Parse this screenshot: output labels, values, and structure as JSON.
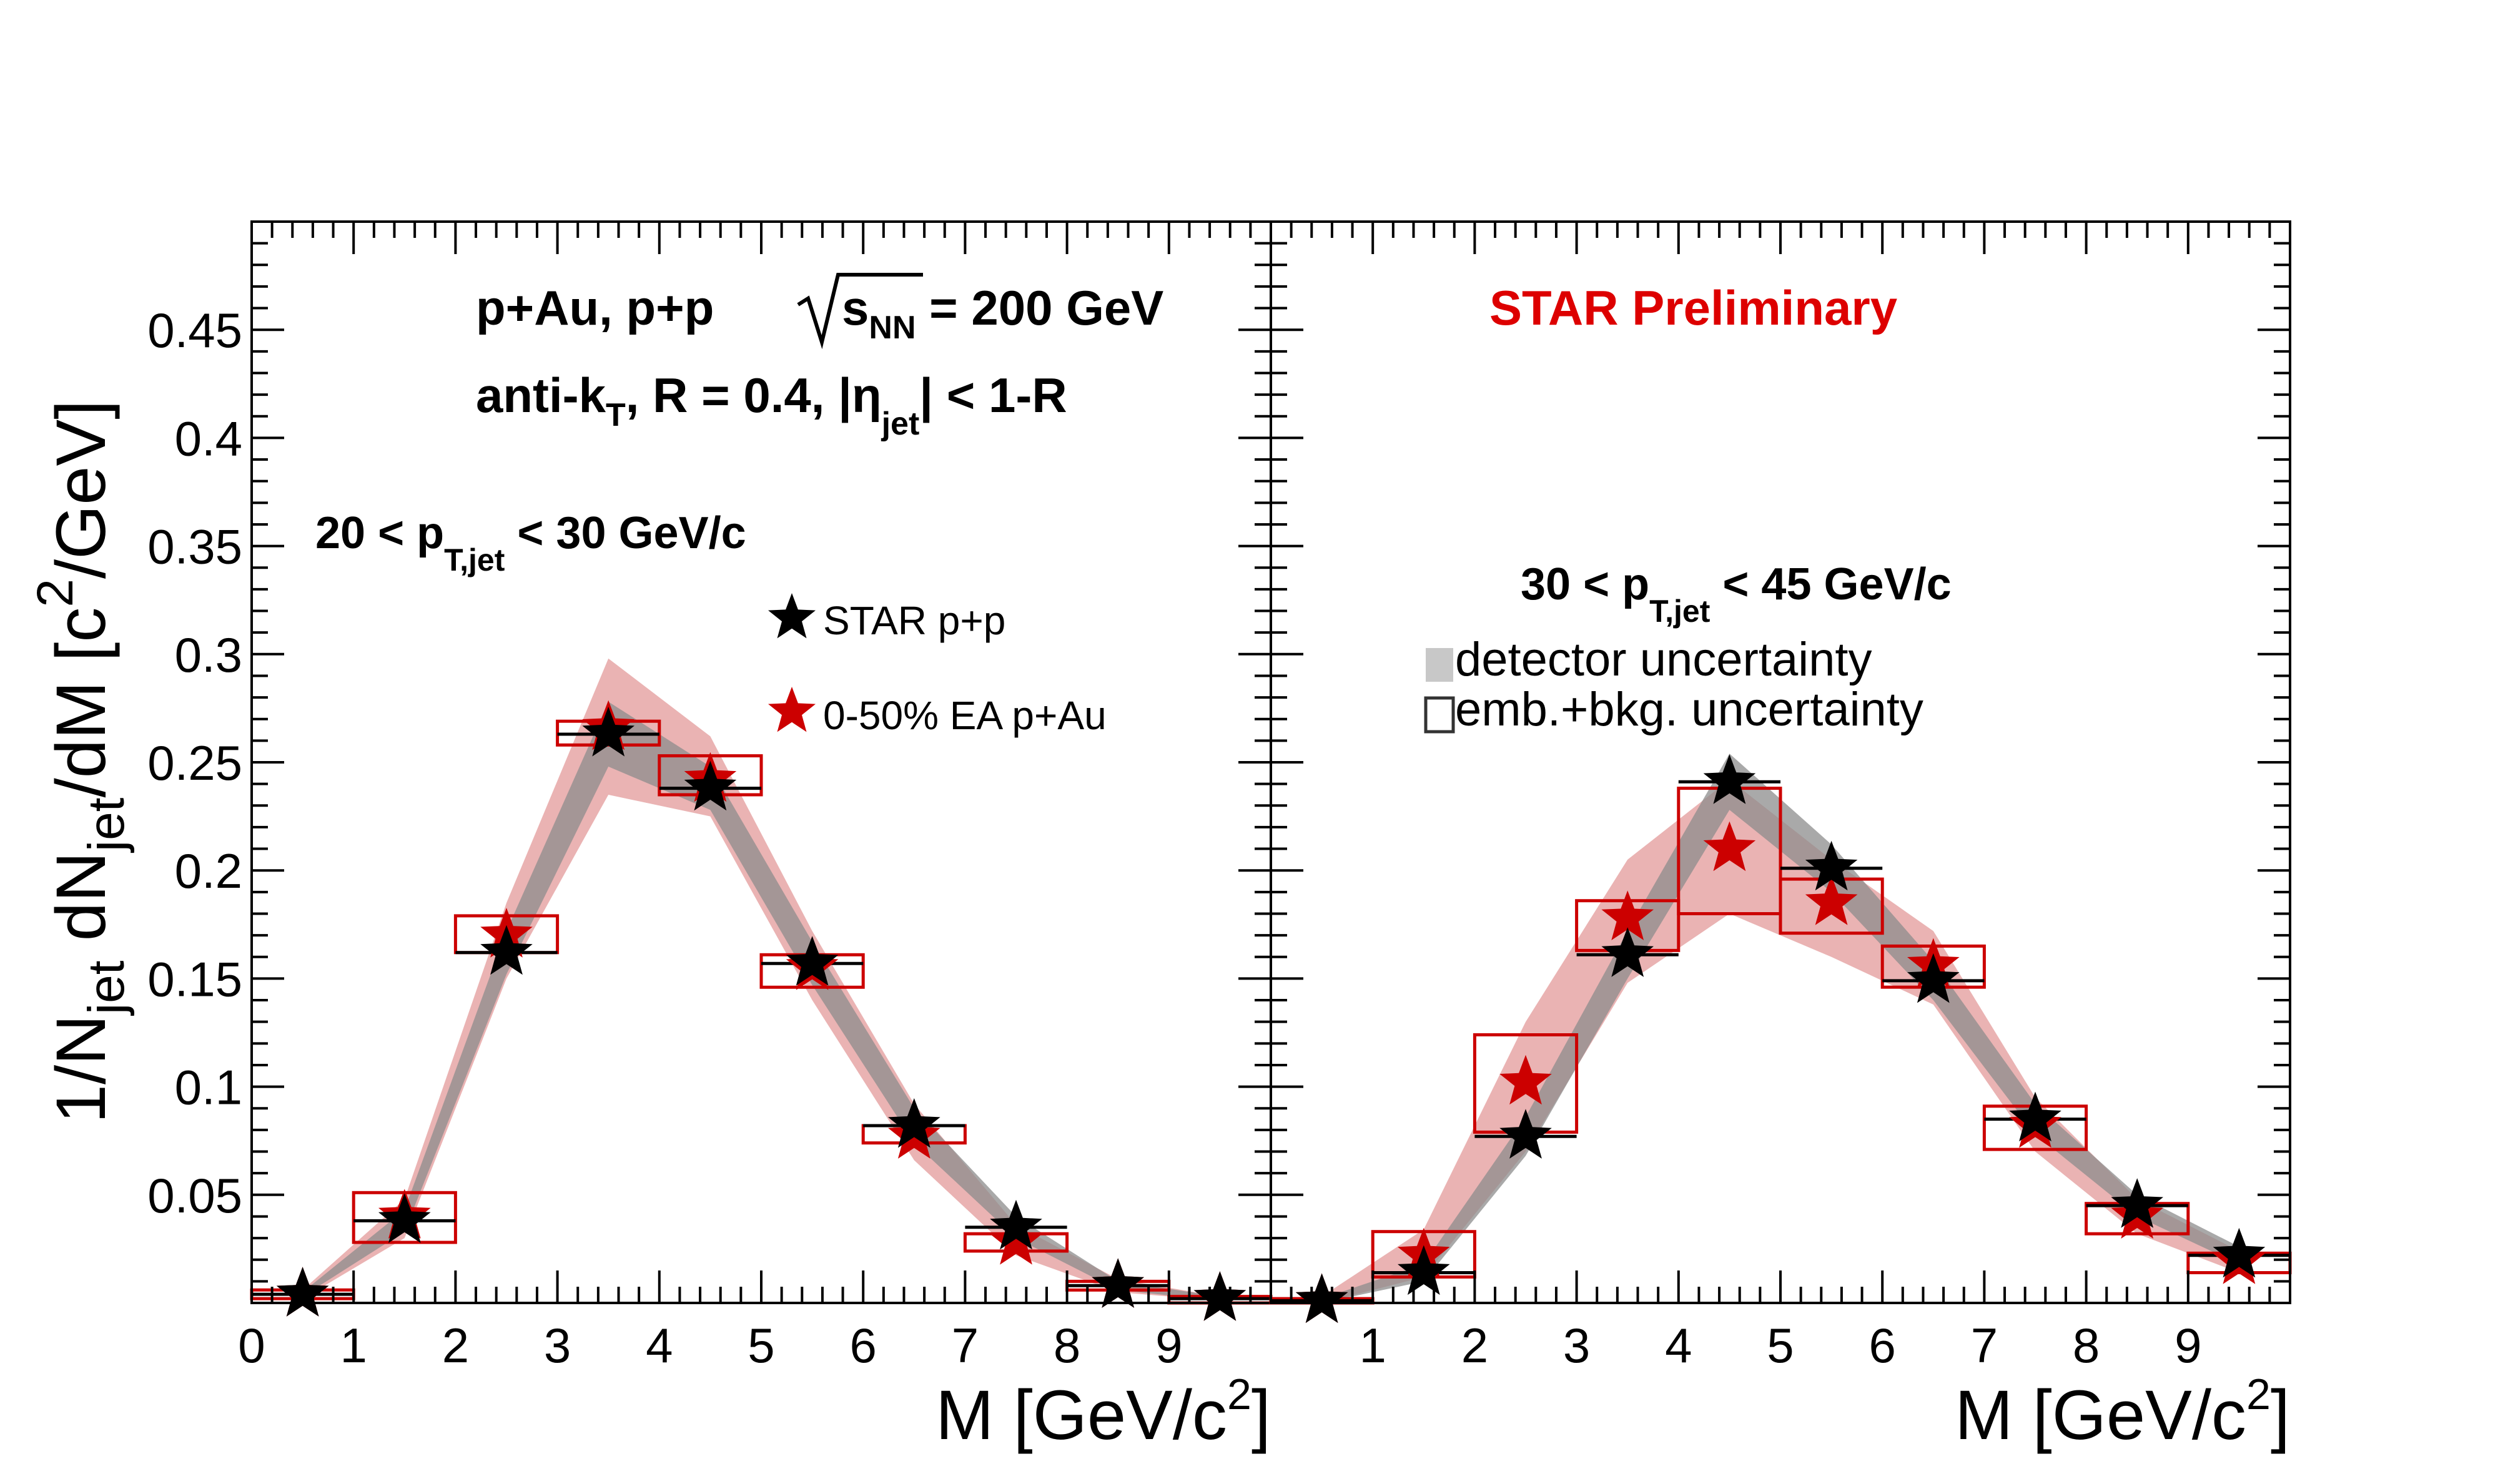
{
  "figure": {
    "ylabel": "1/N_jet dN_jet/dM [c^2/GeV]",
    "ylim": [
      0,
      0.5
    ],
    "yticks": [
      "0.05",
      "0.1",
      "0.15",
      "0.2",
      "0.25",
      "0.3",
      "0.35",
      "0.4",
      "0.45"
    ],
    "yticks_values": [
      0.05,
      0.1,
      0.15,
      0.2,
      0.25,
      0.3,
      0.35,
      0.4,
      0.45
    ],
    "xlabel": "M [GeV/c^2]",
    "colors": {
      "pp": "#000000",
      "pAu": "#cc0000",
      "pp_band": "#8c8c8c",
      "pAu_band": "#e6a6a6",
      "star_preliminary": "#dd0000"
    },
    "annotations": {
      "line1": "p+Au, p+p",
      "sqrt_s": "s",
      "nn": "NN",
      "energy": "= 200 GeV",
      "algo": "anti-k",
      "algo_sub": "T",
      "radius": ", R = 0.4, |η",
      "eta_sub": "jet",
      "eta_tail": "| < 1-R",
      "star_preliminary": "STAR Preliminary"
    },
    "legend": {
      "pp": "STAR p+p",
      "pAu": "0-50% EA p+Au",
      "detector": "detector uncertainty",
      "emb": "emb.+bkg. uncertainty"
    }
  },
  "chart_data": [
    {
      "type": "scatter",
      "panel": "left",
      "pt_bin": {
        "pre": "20 < p",
        "sub": "T,jet",
        "post": " < 30 GeV/c"
      },
      "xlabel": "M [GeV/c^2]",
      "ylabel": "1/N_jet dN_jet/dM [c^2/GeV]",
      "xlim": [
        0,
        10
      ],
      "ylim": [
        0,
        0.5
      ],
      "xticks": [
        "0",
        "1",
        "2",
        "3",
        "4",
        "5",
        "6",
        "7",
        "8",
        "9"
      ],
      "x": [
        0.5,
        1.5,
        2.5,
        3.5,
        4.5,
        5.5,
        6.5,
        7.5,
        8.5,
        9.5
      ],
      "series": [
        {
          "name": "STAR p+p",
          "values": [
            0.004,
            0.038,
            0.162,
            0.263,
            0.238,
            0.157,
            0.082,
            0.035,
            0.008,
            0.002
          ],
          "band_lo": [
            0.003,
            0.033,
            0.152,
            0.248,
            0.228,
            0.147,
            0.074,
            0.03,
            0.006,
            0.001
          ],
          "band_hi": [
            0.005,
            0.043,
            0.172,
            0.278,
            0.248,
            0.167,
            0.09,
            0.04,
            0.01,
            0.003
          ]
        },
        {
          "name": "0-50% EA p+Au",
          "values": [
            0.004,
            0.04,
            0.17,
            0.266,
            0.242,
            0.155,
            0.077,
            0.028,
            0.008,
            0.002
          ],
          "band_lo": [
            0.002,
            0.03,
            0.15,
            0.235,
            0.225,
            0.14,
            0.066,
            0.022,
            0.005,
            0.001
          ],
          "band_hi": [
            0.006,
            0.048,
            0.185,
            0.298,
            0.262,
            0.172,
            0.092,
            0.036,
            0.011,
            0.003
          ],
          "box_lo": [
            0.002,
            0.028,
            0.162,
            0.258,
            0.235,
            0.146,
            0.074,
            0.024,
            0.006,
            0.0
          ],
          "box_hi": [
            0.006,
            0.051,
            0.179,
            0.269,
            0.253,
            0.161,
            0.082,
            0.032,
            0.01,
            0.003
          ]
        }
      ]
    },
    {
      "type": "scatter",
      "panel": "right",
      "pt_bin": {
        "pre": "30 < p",
        "sub": "T,jet",
        "post": " < 45 GeV/c"
      },
      "xlabel": "M [GeV/c^2]",
      "xlim": [
        0,
        10
      ],
      "ylim": [
        0,
        0.5
      ],
      "xticks": [
        "1",
        "2",
        "3",
        "4",
        "5",
        "6",
        "7",
        "8",
        "9"
      ],
      "x": [
        0.5,
        1.5,
        2.5,
        3.5,
        4.5,
        5.5,
        6.5,
        7.5,
        8.5,
        9.5
      ],
      "series": [
        {
          "name": "STAR p+p",
          "values": [
            0.001,
            0.014,
            0.077,
            0.161,
            0.241,
            0.201,
            0.149,
            0.085,
            0.045,
            0.022
          ],
          "band_lo": [
            0.0,
            0.01,
            0.068,
            0.15,
            0.228,
            0.19,
            0.14,
            0.078,
            0.04,
            0.018
          ],
          "band_hi": [
            0.002,
            0.018,
            0.086,
            0.172,
            0.254,
            0.212,
            0.158,
            0.092,
            0.05,
            0.026
          ]
        },
        {
          "name": "0-50% EA p+Au",
          "values": [
            0.001,
            0.022,
            0.102,
            0.178,
            0.21,
            0.185,
            0.156,
            0.082,
            0.04,
            0.019
          ],
          "band_lo": [
            0.0,
            0.012,
            0.07,
            0.148,
            0.18,
            0.16,
            0.138,
            0.07,
            0.032,
            0.014
          ],
          "band_hi": [
            0.003,
            0.034,
            0.13,
            0.205,
            0.242,
            0.205,
            0.172,
            0.095,
            0.048,
            0.024
          ],
          "box_lo": [
            0.0,
            0.012,
            0.079,
            0.163,
            0.18,
            0.171,
            0.146,
            0.071,
            0.032,
            0.014
          ],
          "box_hi": [
            0.002,
            0.033,
            0.124,
            0.186,
            0.238,
            0.196,
            0.165,
            0.091,
            0.046,
            0.023
          ]
        }
      ]
    }
  ]
}
